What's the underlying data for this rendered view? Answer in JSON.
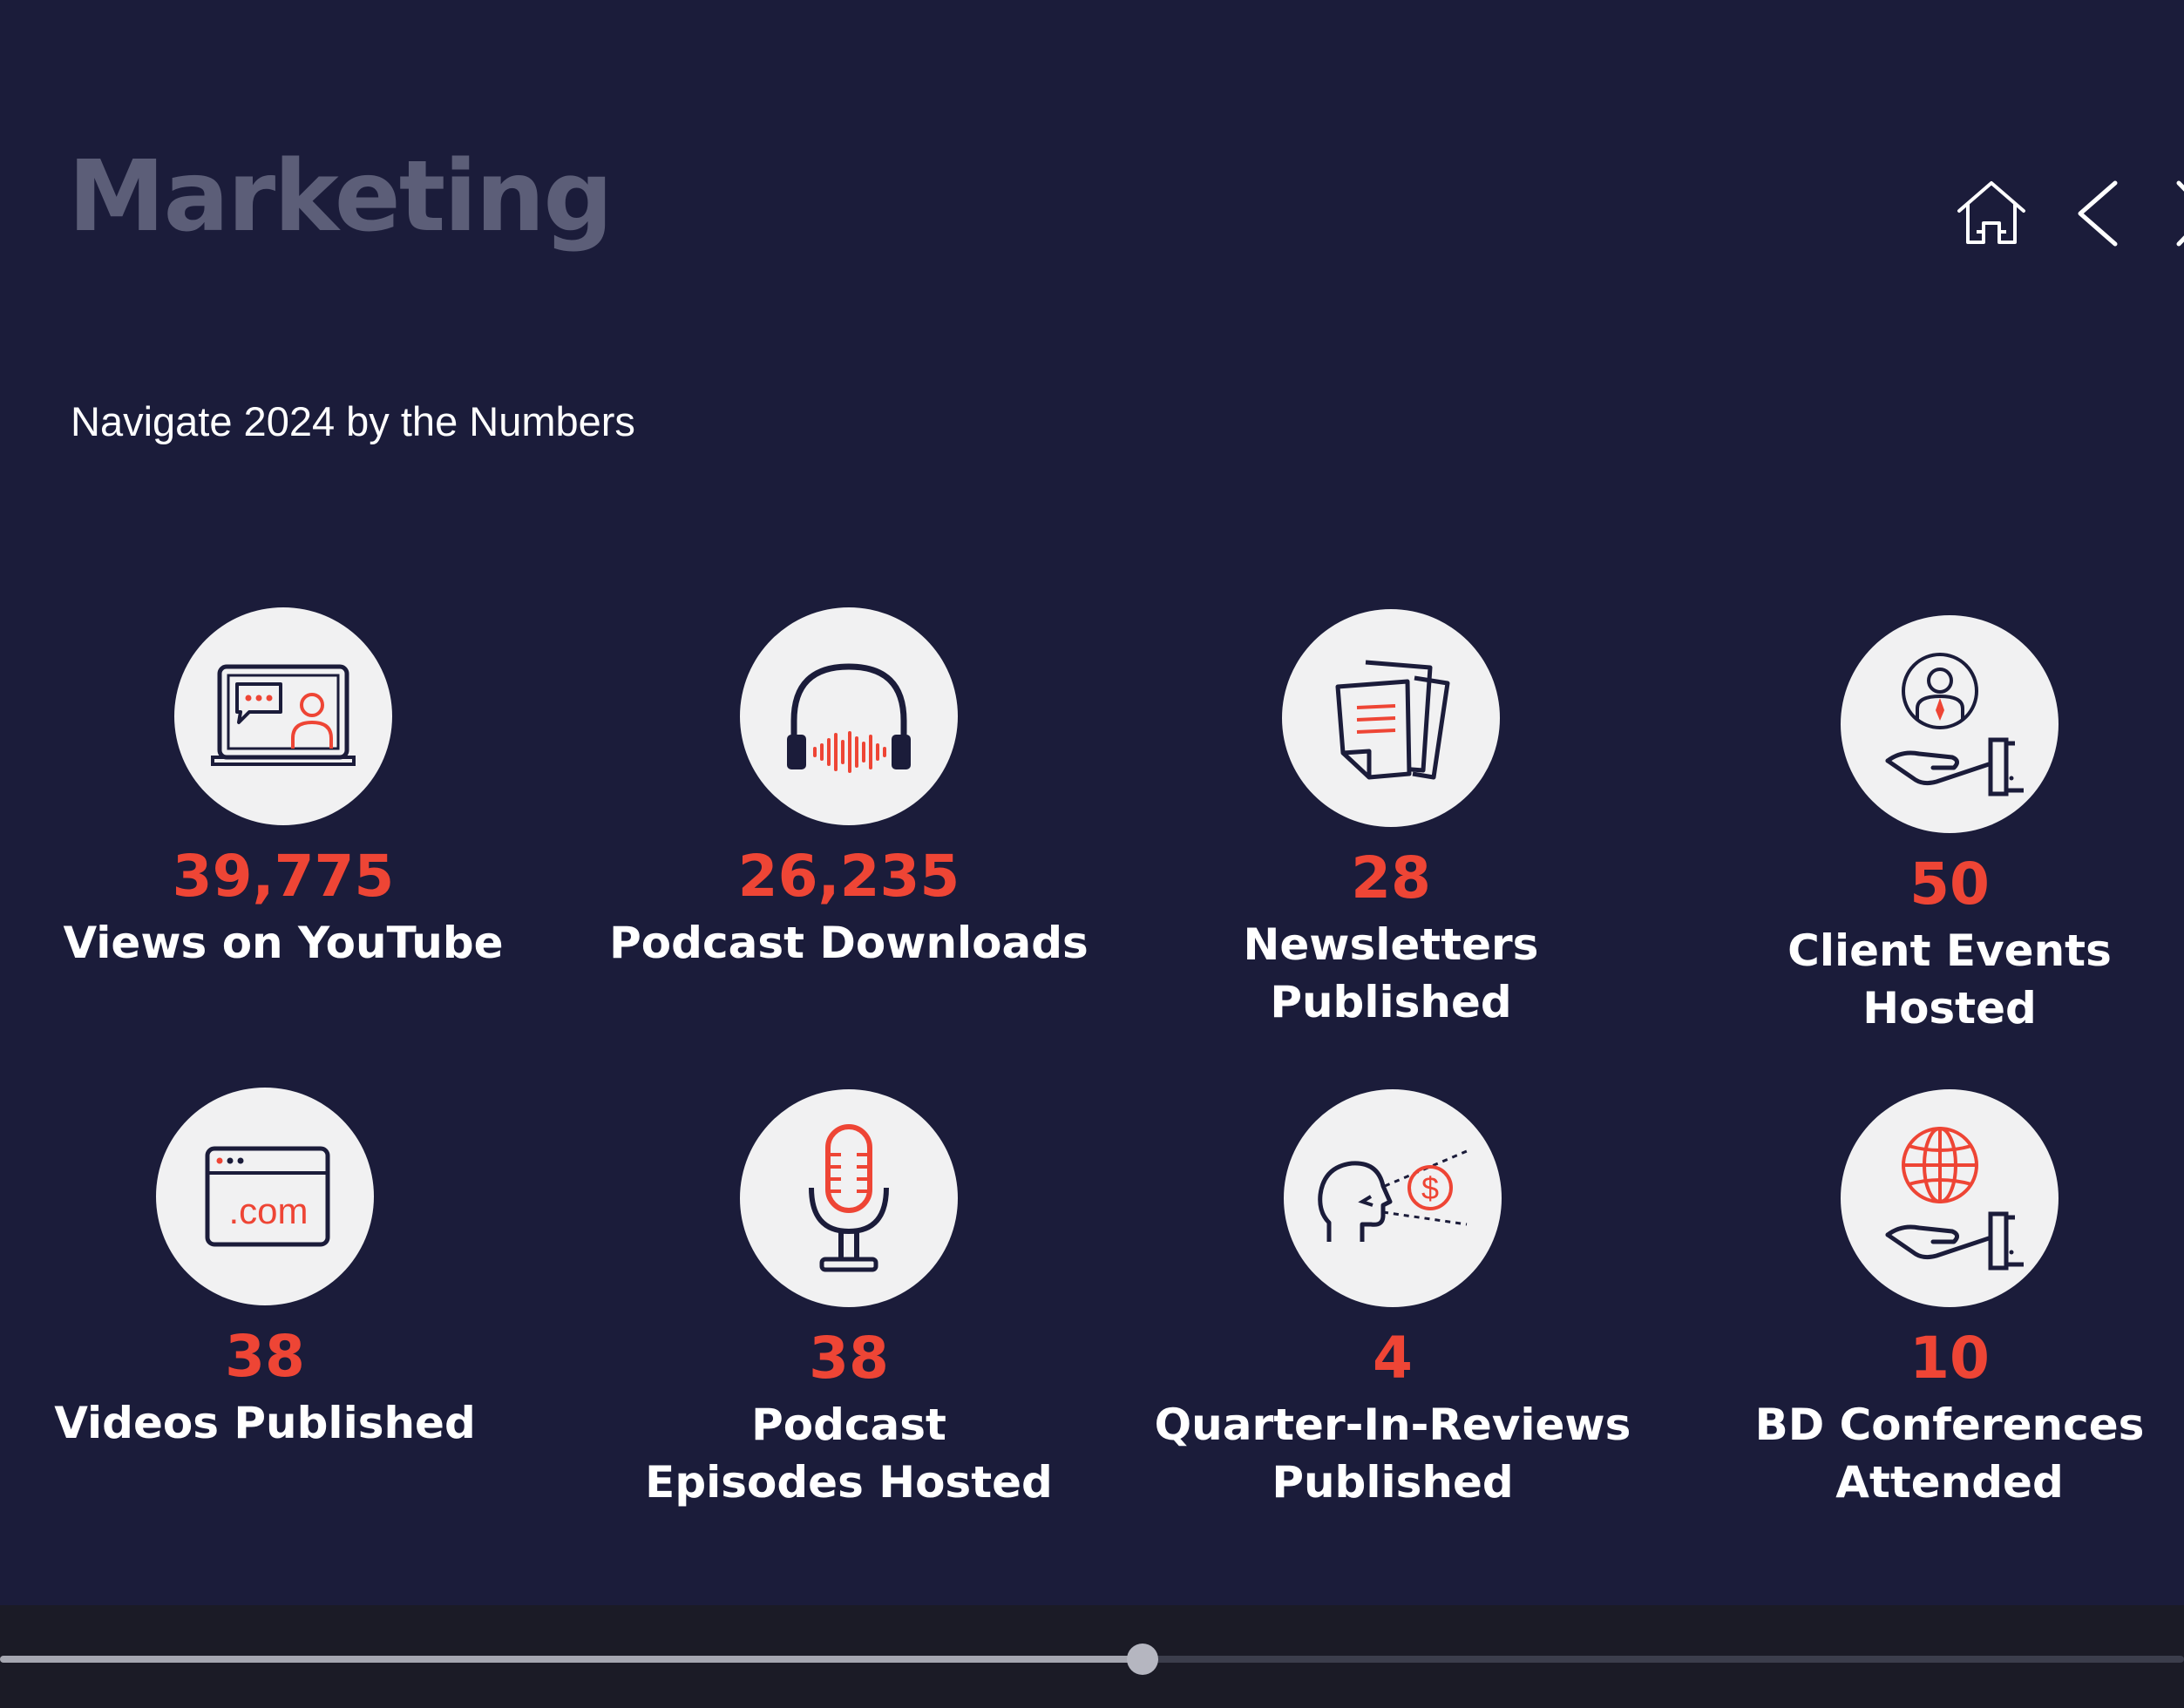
{
  "slide": {
    "title": "Marketing",
    "subtitle": "Navigate 2024 by the Numbers"
  },
  "nav": {
    "icons": [
      "home-icon",
      "chevron-left-icon",
      "chevron-right-icon"
    ]
  },
  "stats": [
    {
      "value": "39,775",
      "label": "Views on YouTube",
      "icon": "video-call-icon"
    },
    {
      "value": "26,235",
      "label": "Podcast Downloads",
      "icon": "headphones-icon"
    },
    {
      "value": "28",
      "label": "Newsletters\nPublished",
      "icon": "documents-icon"
    },
    {
      "value": "50",
      "label": "Client Events Hosted",
      "icon": "hand-person-icon"
    },
    {
      "value": "38",
      "label": "Videos Published",
      "icon": "website-icon"
    },
    {
      "value": "38",
      "label": "Podcast\nEpisodes Hosted",
      "icon": "microphone-icon"
    },
    {
      "value": "4",
      "label": "Quarter-In-Reviews\nPublished",
      "icon": "head-dollar-icon"
    },
    {
      "value": "10",
      "label": "BD Conferences\nAttended",
      "icon": "hand-globe-icon"
    }
  ],
  "colors": {
    "background": "#1b1c3a",
    "accent": "#ee4535",
    "icon_circle": "#f1f1f2",
    "icon_stroke": "#1b1c3a"
  },
  "playback": {
    "progress_fraction": 0.523
  }
}
